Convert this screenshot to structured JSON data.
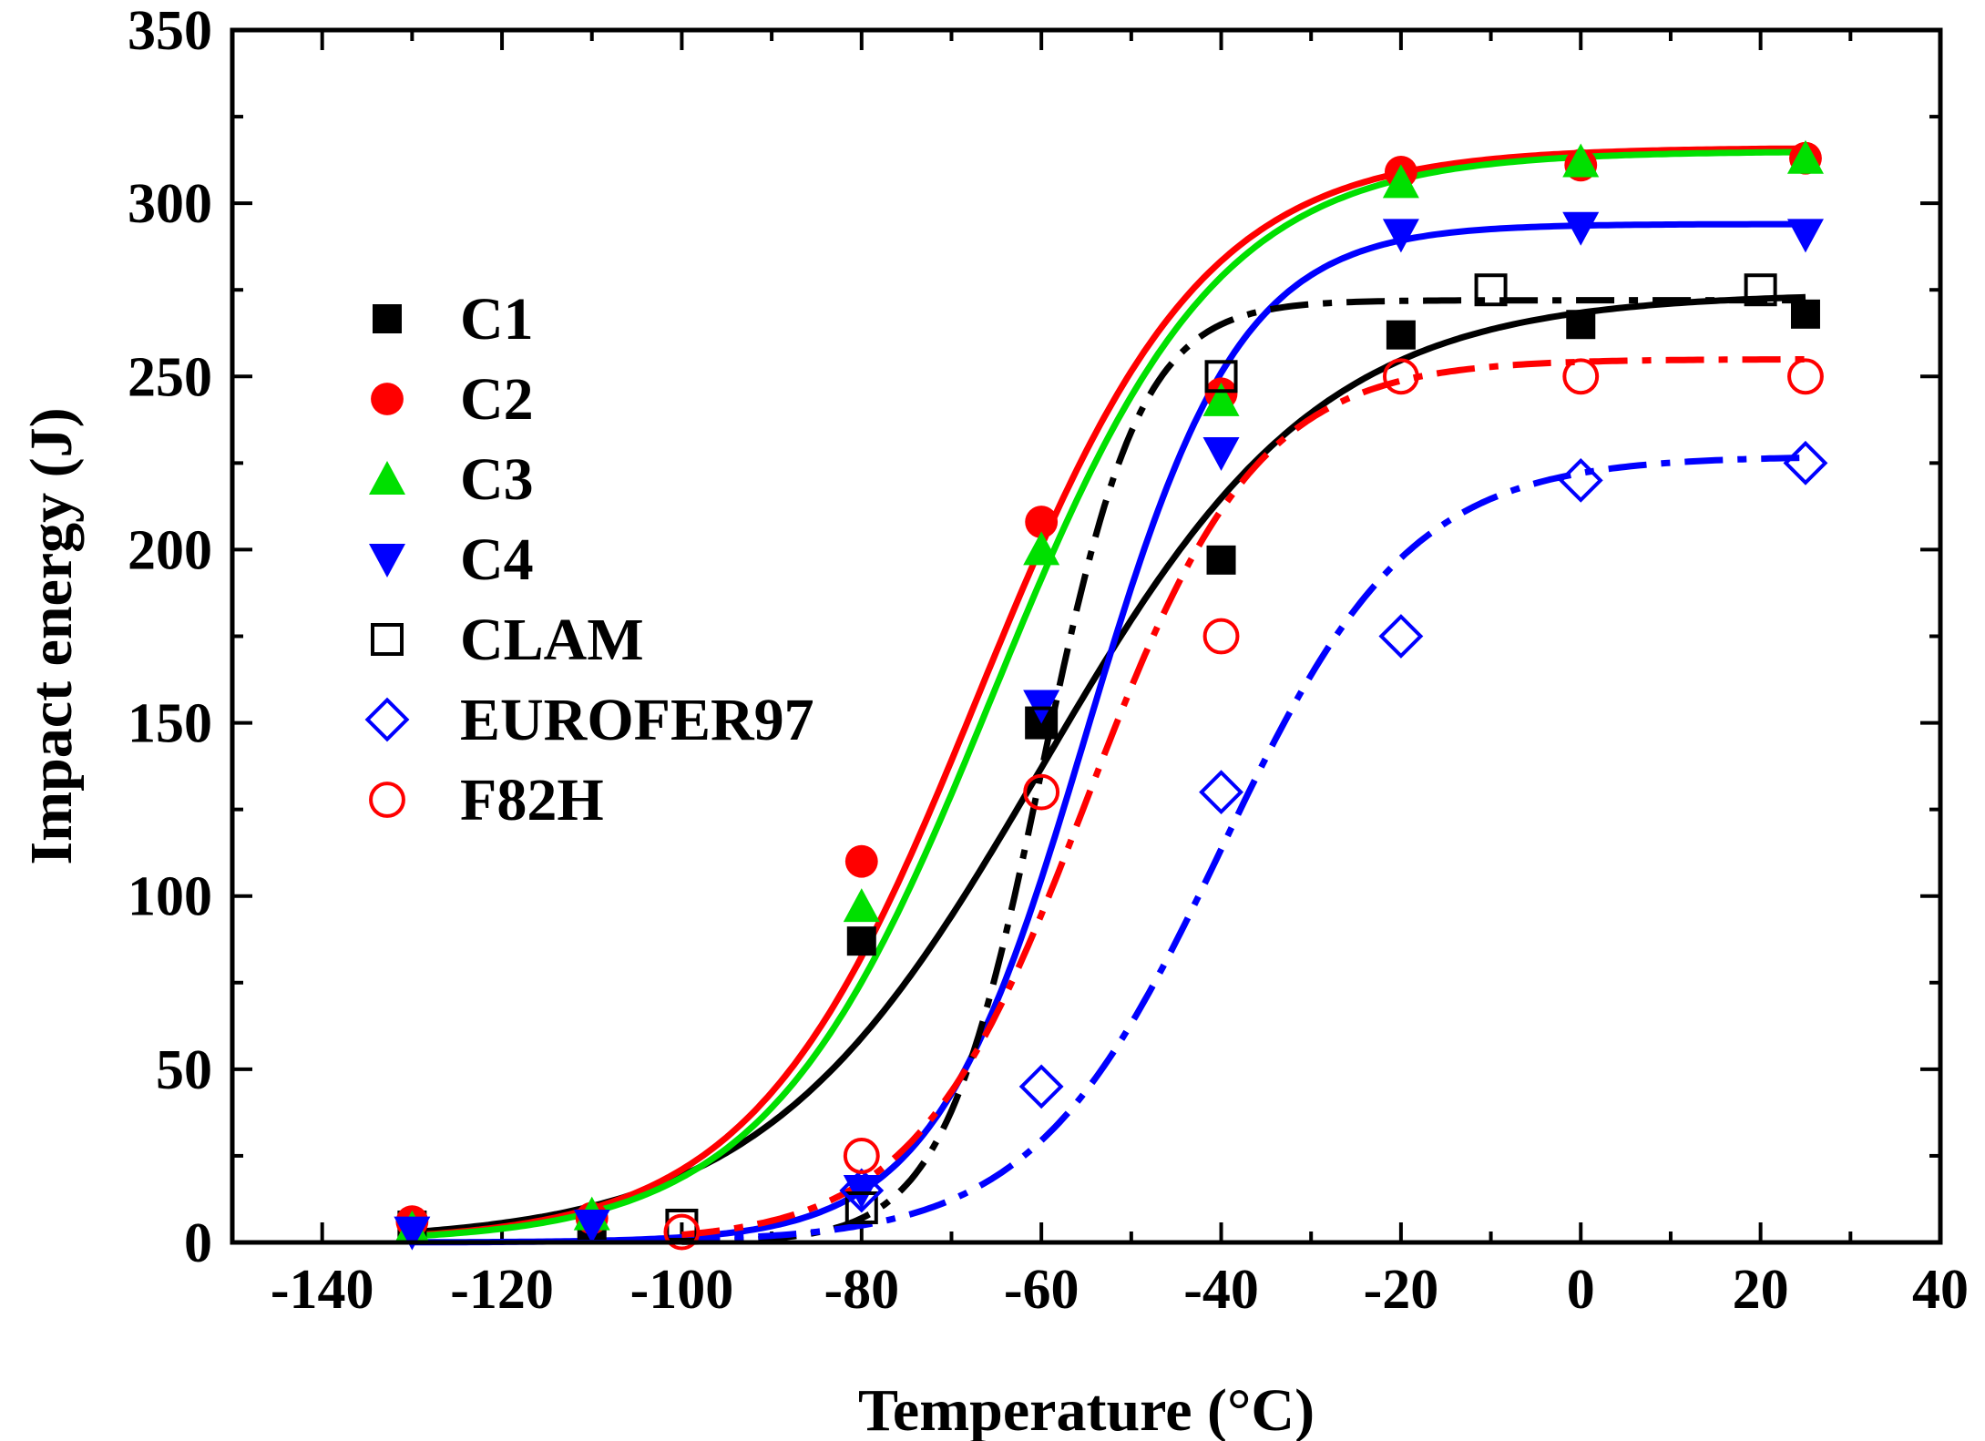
{
  "chart_data": {
    "type": "scatter",
    "title": "",
    "xlabel": "Temperature (°C)",
    "ylabel": "Impact energy (J)",
    "xlim": [
      -150,
      40
    ],
    "ylim": [
      0,
      350
    ],
    "xticks": [
      -140,
      -120,
      -100,
      -80,
      -60,
      -40,
      -20,
      0,
      20,
      40
    ],
    "yticks": [
      0,
      50,
      100,
      150,
      200,
      250,
      300,
      350
    ],
    "legend_position": "left",
    "series": [
      {
        "name": "C1",
        "marker": "square",
        "filled": true,
        "color": "#000000",
        "line": "solid",
        "x": [
          -130,
          -110,
          -80,
          -60,
          -40,
          -20,
          0,
          25
        ],
        "y": [
          5,
          5,
          87,
          150,
          197,
          262,
          265,
          268
        ],
        "fit": {
          "A1": 0,
          "A2": 274,
          "x0": -60,
          "dx": 15.5,
          "from": -130,
          "to": 25
        }
      },
      {
        "name": "C2",
        "marker": "circle",
        "filled": true,
        "color": "#ff0000",
        "line": "solid",
        "x": [
          -130,
          -110,
          -80,
          -60,
          -40,
          -20,
          0,
          25
        ],
        "y": [
          6,
          7,
          110,
          208,
          245,
          309,
          311,
          313
        ],
        "fit": {
          "A1": 0,
          "A2": 316,
          "x0": -67,
          "dx": 12.5,
          "from": -130,
          "to": 25
        }
      },
      {
        "name": "C3",
        "marker": "triangle-up",
        "filled": true,
        "color": "#00e000",
        "line": "solid",
        "x": [
          -130,
          -110,
          -80,
          -60,
          -40,
          -20,
          0,
          25
        ],
        "y": [
          4,
          8,
          97,
          200,
          243,
          306,
          312,
          313
        ],
        "fit": {
          "A1": 0,
          "A2": 315,
          "x0": -65.5,
          "dx": 12.5,
          "from": -130,
          "to": 25
        }
      },
      {
        "name": "C4",
        "marker": "triangle-down",
        "filled": true,
        "color": "#0000ff",
        "line": "solid",
        "x": [
          -130,
          -110,
          -80,
          -60,
          -40,
          -20,
          0,
          25
        ],
        "y": [
          3,
          5,
          15,
          155,
          228,
          291,
          293,
          291
        ],
        "fit": {
          "A1": 0,
          "A2": 294,
          "x0": -55,
          "dx": 8.5,
          "from": -130,
          "to": 25
        }
      },
      {
        "name": "CLAM",
        "marker": "square",
        "filled": false,
        "color": "#000000",
        "line": "dash-dot",
        "x": [
          -100,
          -80,
          -60,
          -40,
          -10,
          20
        ],
        "y": [
          5,
          10,
          150,
          250,
          275,
          275
        ],
        "fit": {
          "A1": 0,
          "A2": 272,
          "x0": -60,
          "dx": 5.5,
          "from": -100,
          "to": 25
        }
      },
      {
        "name": "EUROFER97",
        "marker": "diamond",
        "filled": false,
        "color": "#0000ff",
        "line": "dash-dot",
        "x": [
          -80,
          -60,
          -40,
          -20,
          0,
          25
        ],
        "y": [
          15,
          45,
          130,
          175,
          220,
          225
        ],
        "fit": {
          "A1": 0,
          "A2": 227,
          "x0": -40,
          "dx": 10.5,
          "from": -100,
          "to": 25
        }
      },
      {
        "name": "F82H",
        "marker": "circle",
        "filled": false,
        "color": "#ff0000",
        "line": "dash-dot",
        "x": [
          -100,
          -80,
          -60,
          -40,
          -20,
          0,
          25
        ],
        "y": [
          3,
          25,
          130,
          175,
          250,
          250,
          250
        ],
        "fit": {
          "A1": 0,
          "A2": 255,
          "x0": -55,
          "dx": 9.5,
          "from": -100,
          "to": 25
        }
      }
    ]
  }
}
